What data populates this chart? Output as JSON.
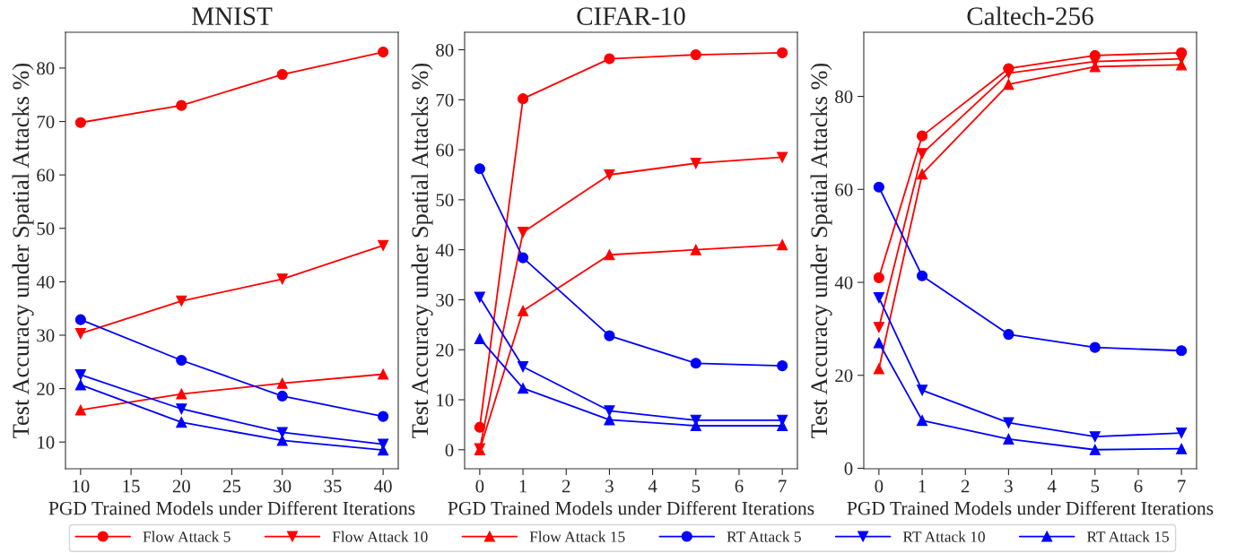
{
  "chart_data": [
    {
      "type": "line",
      "title": "MNIST",
      "xlabel": "PGD Trained Models under Different Iterations",
      "ylabel": "Test Accuracy under Spatial Attacks %)",
      "x": [
        10,
        20,
        30,
        40
      ],
      "xlim": [
        8.5,
        41.5
      ],
      "xticks": [
        10,
        15,
        20,
        25,
        30,
        35,
        40
      ],
      "ylim": [
        5,
        86.7
      ],
      "yticks": [
        10,
        20,
        30,
        40,
        50,
        60,
        70,
        80
      ],
      "grid": false,
      "legend": "bottom",
      "line_style": "solid",
      "series": [
        {
          "name": "Flow Attack 5",
          "color": "#ff0000",
          "marker": "circle",
          "values": [
            69.8,
            73.0,
            78.8,
            83.0
          ]
        },
        {
          "name": "Flow Attack 10",
          "color": "#ff0000",
          "marker": "triangle_down",
          "values": [
            30.3,
            36.4,
            40.5,
            46.8
          ]
        },
        {
          "name": "Flow Attack 15",
          "color": "#ff0000",
          "marker": "triangle",
          "values": [
            16.0,
            19.0,
            21.0,
            22.7
          ]
        },
        {
          "name": "RT Attack 5",
          "color": "#0000ff",
          "marker": "circle",
          "values": [
            32.9,
            25.3,
            18.6,
            14.8
          ]
        },
        {
          "name": "RT Attack 10",
          "color": "#0000ff",
          "marker": "triangle_down",
          "values": [
            22.6,
            16.2,
            11.8,
            9.6
          ]
        },
        {
          "name": "RT Attack 15",
          "color": "#0000ff",
          "marker": "triangle",
          "values": [
            20.7,
            13.7,
            10.3,
            8.5
          ]
        }
      ]
    },
    {
      "type": "line",
      "title": "CIFAR-10",
      "xlabel": "PGD Trained Models under Different Iterations",
      "ylabel": "Test Accuracy under Spatial Attacks %)",
      "x": [
        0,
        1,
        3,
        5,
        7
      ],
      "xlim": [
        -0.35,
        7.35
      ],
      "xticks": [
        0,
        1,
        2,
        3,
        4,
        5,
        6,
        7
      ],
      "ylim": [
        -3.8,
        83.5
      ],
      "yticks": [
        0,
        10,
        20,
        30,
        40,
        50,
        60,
        70,
        80
      ],
      "grid": false,
      "line_style": "solid",
      "series": [
        {
          "color": "#ff0000",
          "marker": "circle",
          "values": [
            4.5,
            70.2,
            78.2,
            79.0,
            79.4
          ]
        },
        {
          "color": "#ff0000",
          "marker": "triangle_down",
          "values": [
            0.2,
            43.5,
            55.0,
            57.3,
            58.5
          ]
        },
        {
          "color": "#ff0000",
          "marker": "triangle",
          "values": [
            0,
            27.8,
            39.0,
            40.0,
            41.0
          ]
        },
        {
          "color": "#0000ff",
          "marker": "circle",
          "values": [
            56.2,
            38.4,
            22.8,
            17.3,
            16.8
          ]
        },
        {
          "color": "#0000ff",
          "marker": "triangle_down",
          "values": [
            30.5,
            16.6,
            7.8,
            5.9,
            5.9
          ]
        },
        {
          "color": "#0000ff",
          "marker": "triangle",
          "values": [
            22.2,
            12.3,
            6.0,
            4.8,
            4.8
          ]
        }
      ]
    },
    {
      "type": "line",
      "title": "Caltech-256",
      "xlabel": "PGD Trained Models under Different Iterations",
      "ylabel": "Test Accuracy under Spatial Attacks %)",
      "x": [
        0,
        1,
        3,
        5,
        7
      ],
      "xlim": [
        -0.35,
        7.35
      ],
      "xticks": [
        0,
        1,
        2,
        3,
        4,
        5,
        6,
        7
      ],
      "ylim": [
        -0.1,
        93.8
      ],
      "yticks": [
        0,
        20,
        40,
        60,
        80
      ],
      "grid": false,
      "line_style": "solid",
      "series": [
        {
          "color": "#ff0000",
          "marker": "circle",
          "values": [
            41.0,
            71.5,
            86.0,
            88.8,
            89.4
          ]
        },
        {
          "color": "#ff0000",
          "marker": "triangle_down",
          "values": [
            30.3,
            67.7,
            85.0,
            87.5,
            88.1
          ]
        },
        {
          "color": "#ff0000",
          "marker": "triangle",
          "values": [
            21.4,
            63.3,
            82.6,
            86.4,
            86.8
          ]
        },
        {
          "color": "#0000ff",
          "marker": "circle",
          "values": [
            60.5,
            41.4,
            28.8,
            26.0,
            25.3
          ]
        },
        {
          "color": "#0000ff",
          "marker": "triangle_down",
          "values": [
            36.7,
            16.8,
            9.8,
            6.8,
            7.6
          ]
        },
        {
          "color": "#0000ff",
          "marker": "triangle",
          "values": [
            27.0,
            10.3,
            6.3,
            4.0,
            4.2
          ]
        }
      ]
    }
  ]
}
